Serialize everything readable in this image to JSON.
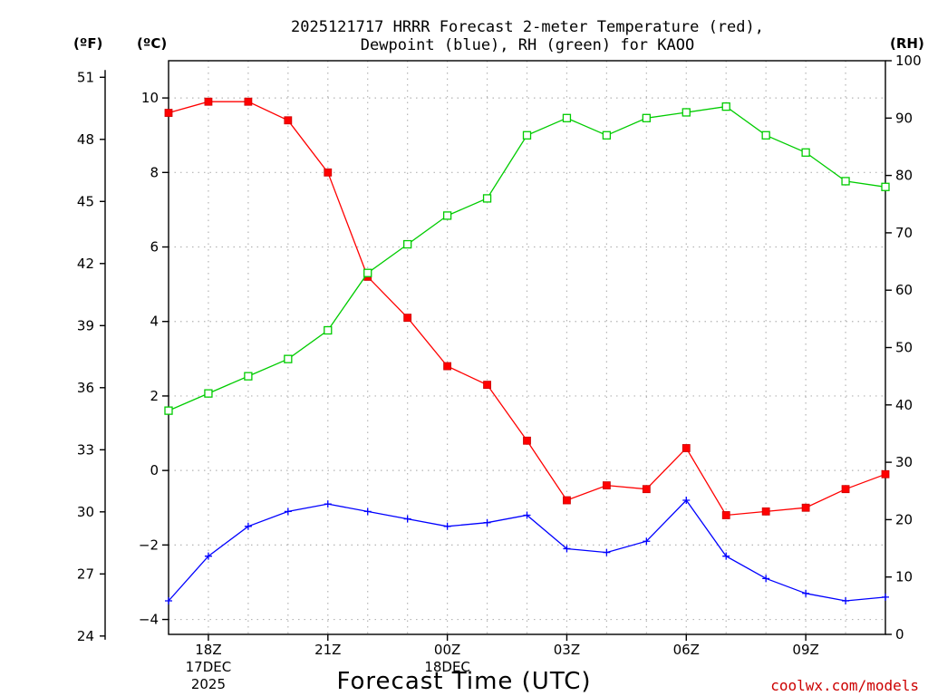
{
  "chart_data": {
    "type": "line",
    "title_line1": "2025121717 HRRR Forecast 2-meter Temperature (red),",
    "title_line2": "Dewpoint (blue), RH (green) for KAOO",
    "xlabel": "Forecast Time (UTC)",
    "credit": "coolwx.com/models",
    "left_outer_unit": "(ºF)",
    "left_inner_unit": "(ºC)",
    "right_unit": "(RH)",
    "x_hours": [
      17,
      18,
      19,
      20,
      21,
      22,
      23,
      24,
      25,
      26,
      27,
      28,
      29,
      30,
      31,
      32,
      33,
      34,
      35
    ],
    "x_range": [
      17,
      35
    ],
    "x_ticks": [
      {
        "hour": 18,
        "label": "18Z",
        "sub1": "17DEC",
        "sub2": "2025"
      },
      {
        "hour": 21,
        "label": "21Z",
        "sub1": "",
        "sub2": ""
      },
      {
        "hour": 24,
        "label": "00Z",
        "sub1": "18DEC",
        "sub2": ""
      },
      {
        "hour": 27,
        "label": "03Z",
        "sub1": "",
        "sub2": ""
      },
      {
        "hour": 30,
        "label": "06Z",
        "sub1": "",
        "sub2": ""
      },
      {
        "hour": 33,
        "label": "09Z",
        "sub1": "",
        "sub2": ""
      }
    ],
    "celsius_range": [
      -4.4,
      11.0
    ],
    "celsius_ticks": [
      "10",
      "8",
      "6",
      "4",
      "2",
      "0",
      "−2",
      "−4"
    ],
    "celsius_tick_values": [
      10,
      8,
      6,
      4,
      2,
      0,
      -2,
      -4
    ],
    "fahrenheit_ticks": [
      "51",
      "48",
      "45",
      "42",
      "39",
      "36",
      "33",
      "30",
      "27",
      "24"
    ],
    "fahrenheit_tick_values": [
      51,
      48,
      45,
      42,
      39,
      36,
      33,
      30,
      27,
      24
    ],
    "rh_range": [
      0,
      100
    ],
    "rh_ticks": [
      "100",
      "90",
      "80",
      "70",
      "60",
      "50",
      "40",
      "30",
      "20",
      "10",
      "0"
    ],
    "rh_tick_values": [
      100,
      90,
      80,
      70,
      60,
      50,
      40,
      30,
      20,
      10,
      0
    ],
    "series": [
      {
        "name": "Temperature",
        "color": "#ff0000",
        "marker": "filled-square",
        "values": [
          9.6,
          9.9,
          9.9,
          9.4,
          8.0,
          5.2,
          4.1,
          2.8,
          2.3,
          0.8,
          -0.8,
          -0.4,
          -0.5,
          0.6,
          -1.2,
          -1.1,
          -1.0,
          -0.5,
          -0.1
        ]
      },
      {
        "name": "Dewpoint",
        "color": "#0000ff",
        "marker": "plus",
        "values": [
          -3.5,
          -2.3,
          -1.5,
          -1.1,
          -0.9,
          -1.1,
          -1.3,
          -1.5,
          -1.4,
          -1.2,
          -2.1,
          -2.2,
          -1.9,
          -0.8,
          -2.3,
          -2.9,
          -3.3,
          -3.5,
          -3.4
        ]
      },
      {
        "name": "RH",
        "color": "#00cc00",
        "marker": "open-square",
        "axis": "right",
        "values": [
          39,
          42,
          45,
          48,
          53,
          63,
          68,
          73,
          76,
          87,
          90,
          87,
          90,
          91,
          92,
          87,
          84,
          79,
          78
        ]
      }
    ]
  }
}
